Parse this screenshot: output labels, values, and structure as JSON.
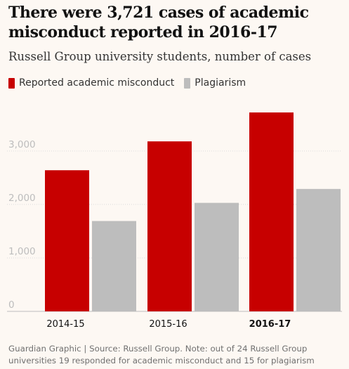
{
  "header": {
    "title": "There were 3,721 cases of academic misconduct reported in 2016-17",
    "subtitle": "Russell Group university students, number of cases"
  },
  "legend": [
    {
      "label": "Reported academic misconduct",
      "color": "#c70000"
    },
    {
      "label": "Plagiarism",
      "color": "#bdbdbd"
    }
  ],
  "footer": {
    "source": "Guardian Graphic | Source: Russell Group. Note: out of 24 Russell Group universities 19 responded for academic misconduct and 15 for plagiarism"
  },
  "chart_data": {
    "type": "bar",
    "title": "There were 3,721 cases of academic misconduct reported in 2016-17",
    "subtitle": "Russell Group university students, number of cases",
    "categories": [
      "2014-15",
      "2015-16",
      "2016-17"
    ],
    "emphasized_category": "2016-17",
    "series": [
      {
        "name": "Reported academic misconduct",
        "color": "#c70000",
        "values": [
          2640,
          3180,
          3721
        ]
      },
      {
        "name": "Plagiarism",
        "color": "#bdbdbd",
        "values": [
          1690,
          2030,
          2290
        ]
      }
    ],
    "y_ticks": [
      0,
      1000,
      2000,
      3000
    ],
    "y_tick_labels": [
      "0",
      "1,000",
      "2,000",
      "3,000"
    ],
    "ylim": [
      0,
      3721
    ],
    "grid": true,
    "legend_position": "top-left",
    "xlabel": "",
    "ylabel": ""
  }
}
